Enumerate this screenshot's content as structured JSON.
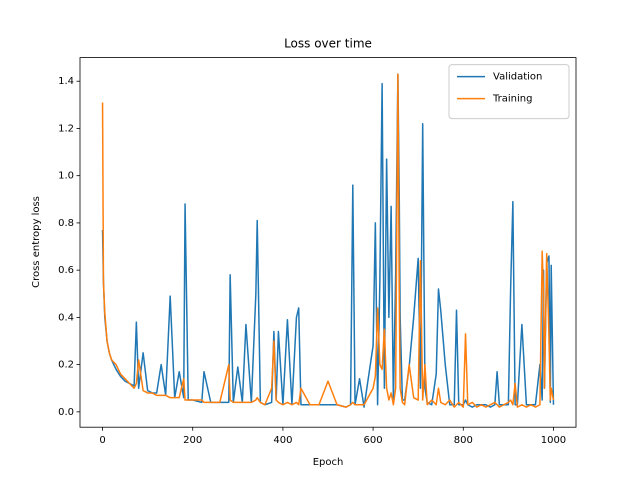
{
  "chart_data": {
    "type": "line",
    "title": "Loss over time",
    "x_label": "Epoch",
    "y_label": "Cross entropy loss",
    "x": [
      0,
      2,
      5,
      10,
      15,
      20,
      30,
      40,
      50,
      60,
      70,
      75,
      80,
      90,
      100,
      110,
      120,
      130,
      140,
      150,
      160,
      170,
      180,
      183,
      190,
      200,
      220,
      225,
      240,
      260,
      280,
      283,
      290,
      300,
      310,
      318,
      330,
      340,
      343,
      350,
      360,
      375,
      380,
      385,
      390,
      400,
      410,
      420,
      430,
      435,
      440,
      460,
      480,
      500,
      520,
      540,
      550,
      555,
      560,
      570,
      580,
      600,
      605,
      610,
      615,
      620,
      625,
      630,
      635,
      640,
      645,
      650,
      655,
      658,
      660,
      665,
      670,
      680,
      690,
      700,
      705,
      710,
      715,
      720,
      730,
      740,
      745,
      750,
      760,
      770,
      780,
      785,
      790,
      800,
      805,
      810,
      820,
      830,
      840,
      850,
      860,
      870,
      875,
      880,
      890,
      900,
      905,
      910,
      915,
      920,
      930,
      940,
      950,
      960,
      970,
      975,
      978,
      980,
      985,
      990,
      993,
      995,
      1000
    ],
    "series": [
      {
        "name": "Validation",
        "color": "#1f77b4",
        "values": [
          0.77,
          0.55,
          0.4,
          0.3,
          0.25,
          0.22,
          0.18,
          0.15,
          0.13,
          0.12,
          0.11,
          0.38,
          0.1,
          0.25,
          0.09,
          0.08,
          0.08,
          0.2,
          0.07,
          0.49,
          0.06,
          0.17,
          0.06,
          0.88,
          0.05,
          0.05,
          0.04,
          0.17,
          0.04,
          0.04,
          0.04,
          0.58,
          0.04,
          0.19,
          0.04,
          0.37,
          0.04,
          0.5,
          0.81,
          0.04,
          0.03,
          0.04,
          0.34,
          0.05,
          0.34,
          0.03,
          0.39,
          0.03,
          0.4,
          0.44,
          0.03,
          0.03,
          0.03,
          0.03,
          0.03,
          0.02,
          0.03,
          0.96,
          0.03,
          0.14,
          0.02,
          0.28,
          0.8,
          0.03,
          0.55,
          1.39,
          0.1,
          1.07,
          0.4,
          0.87,
          0.05,
          0.58,
          1.43,
          0.92,
          0.4,
          0.05,
          0.05,
          0.19,
          0.4,
          0.65,
          0.1,
          1.22,
          0.1,
          0.04,
          0.03,
          0.16,
          0.52,
          0.43,
          0.2,
          0.03,
          0.03,
          0.43,
          0.03,
          0.03,
          0.05,
          0.03,
          0.02,
          0.03,
          0.03,
          0.03,
          0.02,
          0.03,
          0.17,
          0.03,
          0.03,
          0.03,
          0.52,
          0.89,
          0.03,
          0.03,
          0.37,
          0.03,
          0.03,
          0.03,
          0.2,
          0.05,
          0.6,
          0.1,
          0.63,
          0.66,
          0.04,
          0.62,
          0.03
        ]
      },
      {
        "name": "Training",
        "color": "#ff7f0e",
        "values": [
          1.31,
          0.55,
          0.42,
          0.3,
          0.25,
          0.22,
          0.2,
          0.16,
          0.14,
          0.12,
          0.1,
          0.12,
          0.22,
          0.09,
          0.08,
          0.08,
          0.07,
          0.07,
          0.07,
          0.06,
          0.06,
          0.06,
          0.14,
          0.05,
          0.05,
          0.05,
          0.05,
          0.04,
          0.04,
          0.04,
          0.2,
          0.05,
          0.04,
          0.04,
          0.04,
          0.04,
          0.04,
          0.05,
          0.06,
          0.04,
          0.03,
          0.1,
          0.3,
          0.05,
          0.04,
          0.03,
          0.04,
          0.03,
          0.04,
          0.03,
          0.1,
          0.03,
          0.03,
          0.13,
          0.03,
          0.02,
          0.03,
          0.04,
          0.03,
          0.03,
          0.03,
          0.1,
          0.15,
          0.44,
          0.2,
          0.18,
          0.35,
          0.1,
          0.05,
          0.08,
          0.03,
          0.1,
          1.43,
          0.5,
          0.1,
          0.04,
          0.03,
          0.2,
          0.06,
          0.05,
          0.64,
          0.05,
          0.2,
          0.03,
          0.05,
          0.03,
          0.1,
          0.04,
          0.03,
          0.05,
          0.02,
          0.03,
          0.04,
          0.02,
          0.33,
          0.03,
          0.04,
          0.02,
          0.03,
          0.02,
          0.03,
          0.04,
          0.03,
          0.02,
          0.03,
          0.04,
          0.05,
          0.03,
          0.12,
          0.02,
          0.03,
          0.02,
          0.03,
          0.02,
          0.03,
          0.68,
          0.5,
          0.1,
          0.67,
          0.32,
          0.05,
          0.1,
          0.05
        ]
      }
    ],
    "xlim": [
      -50,
      1050
    ],
    "xticks": [
      0,
      200,
      400,
      600,
      800,
      1000
    ],
    "ylim": [
      -0.065,
      1.5
    ],
    "yticks": [
      {
        "value": 0,
        "label": "0.0"
      },
      0.2,
      0.4,
      0.6,
      0.8,
      {
        "value": 1,
        "label": "1.0"
      },
      1.2,
      1.4
    ],
    "grid": false,
    "legend": "upper right"
  }
}
